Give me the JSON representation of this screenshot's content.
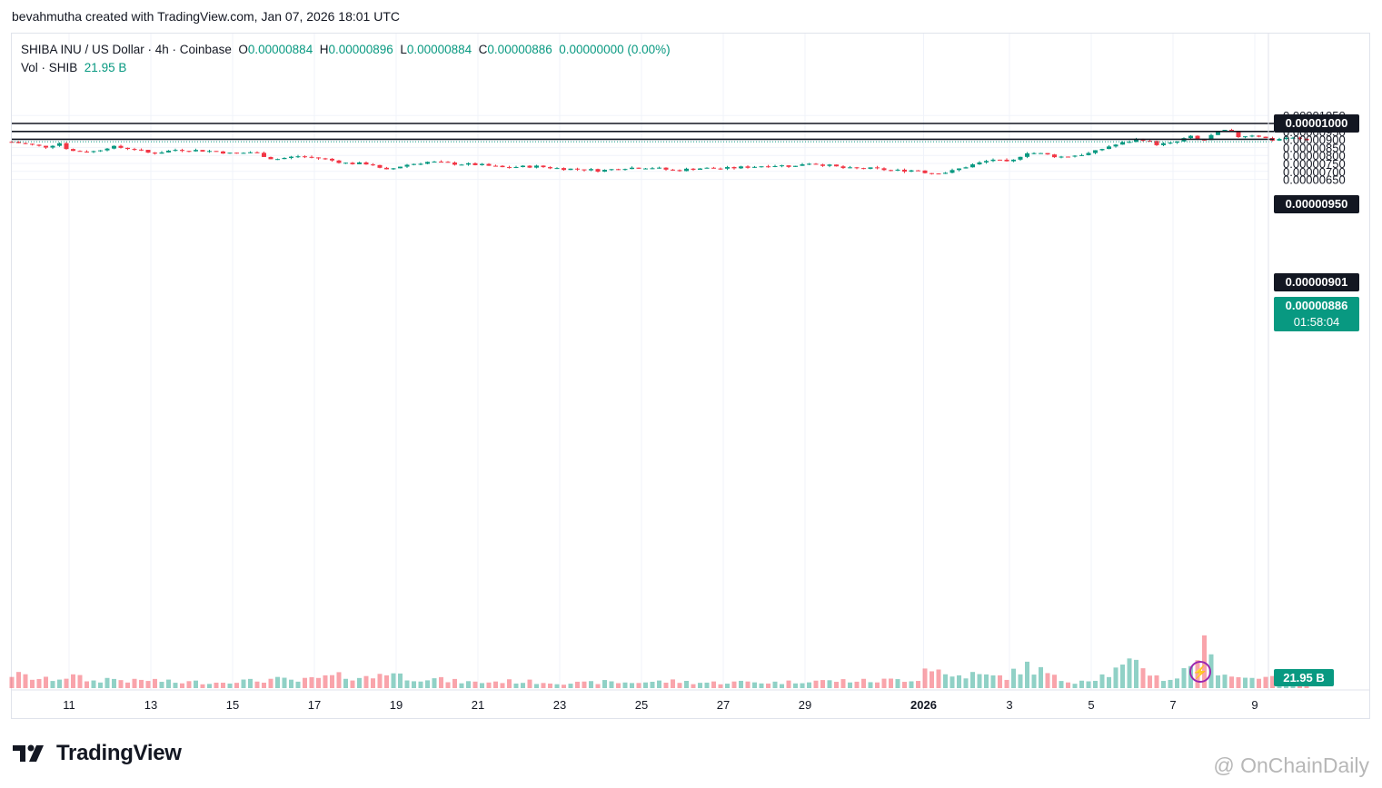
{
  "attribution": "bevahmutha created with TradingView.com, Jan 07, 2026 18:01 UTC",
  "legend": {
    "symbol": "SHIBA INU / US Dollar · 4h · Coinbase",
    "open_label": "O",
    "open": "0.00000884",
    "high_label": "H",
    "high": "0.00000896",
    "low_label": "L",
    "low": "0.00000884",
    "close_label": "C",
    "close": "0.00000886",
    "change": "0.00000000 (0.00%)",
    "vol_label": "Vol · SHIB",
    "vol_value": "21.95 B"
  },
  "price_scale": {
    "current_price": "0.00000886",
    "countdown": "01:58:04",
    "volume_badge": "21.95 B"
  },
  "brand": "TradingView",
  "watermark": "@ OnChainDaily",
  "colors": {
    "up": "#089981",
    "down": "#f23645",
    "level_line": "#131722"
  },
  "chart_data": {
    "type": "candlestick",
    "symbol": "SHIB/USD",
    "interval": "4h",
    "y_ticks": [
      1.05e-05,
      1e-05,
      9.5e-06,
      9e-06,
      8.5e-06,
      8e-06,
      7.5e-06,
      7e-06,
      6.5e-06
    ],
    "y_tick_labels": [
      "0.00001050",
      "0.00001000",
      "0.00000950",
      "0.00000900",
      "0.00000850",
      "0.00000800",
      "0.00000750",
      "0.00000700",
      "0.00000650"
    ],
    "x_tick_labels": [
      "11",
      "13",
      "15",
      "17",
      "19",
      "21",
      "23",
      "25",
      "27",
      "29",
      "2026",
      "3",
      "5",
      "7",
      "9"
    ],
    "horizontal_levels": [
      {
        "value": 1e-05,
        "label": "0.00001000"
      },
      {
        "value": 9.5e-06,
        "label": "0.00000950"
      },
      {
        "value": 9.01e-06,
        "label": "0.00000901"
      }
    ],
    "candle_anchors": [
      {
        "day": 9.6,
        "close": 8.85e-06,
        "volume": 2.0
      },
      {
        "day": 10.4,
        "close": 8.52e-06,
        "volume": 1.2
      },
      {
        "day": 10.8,
        "close": 8.8e-06,
        "volume": 1.5
      },
      {
        "day": 11.0,
        "close": 8.28e-06,
        "volume": 1.8
      },
      {
        "day": 11.6,
        "close": 8.25e-06,
        "volume": 1.0
      },
      {
        "day": 12.0,
        "close": 8.55e-06,
        "volume": 1.4
      },
      {
        "day": 12.6,
        "close": 8.4e-06,
        "volume": 1.0
      },
      {
        "day": 13.0,
        "close": 8.12e-06,
        "volume": 1.2
      },
      {
        "day": 13.6,
        "close": 8.35e-06,
        "volume": 0.8
      },
      {
        "day": 14.0,
        "close": 8.33e-06,
        "volume": 0.9
      },
      {
        "day": 14.6,
        "close": 8.25e-06,
        "volume": 0.8
      },
      {
        "day": 15.0,
        "close": 8.1e-06,
        "volume": 1.1
      },
      {
        "day": 15.5,
        "close": 8.22e-06,
        "volume": 1.0
      },
      {
        "day": 16.0,
        "close": 7.75e-06,
        "volume": 1.3
      },
      {
        "day": 16.6,
        "close": 7.95e-06,
        "volume": 1.0
      },
      {
        "day": 17.2,
        "close": 7.8e-06,
        "volume": 1.5
      },
      {
        "day": 17.8,
        "close": 7.5e-06,
        "volume": 1.8
      },
      {
        "day": 18.4,
        "close": 7.48e-06,
        "volume": 1.4
      },
      {
        "day": 18.7,
        "close": 7.02e-06,
        "volume": 2.6
      },
      {
        "day": 19.2,
        "close": 7.4e-06,
        "volume": 1.6
      },
      {
        "day": 19.8,
        "close": 7.6e-06,
        "volume": 1.4
      },
      {
        "day": 20.4,
        "close": 7.48e-06,
        "volume": 1.0
      },
      {
        "day": 21.0,
        "close": 7.42e-06,
        "volume": 0.8
      },
      {
        "day": 21.6,
        "close": 7.25e-06,
        "volume": 1.0
      },
      {
        "day": 22.4,
        "close": 7.32e-06,
        "volume": 0.9
      },
      {
        "day": 23.0,
        "close": 7.18e-06,
        "volume": 0.8
      },
      {
        "day": 23.6,
        "close": 7.12e-06,
        "volume": 0.7
      },
      {
        "day": 24.0,
        "close": 7.05e-06,
        "volume": 0.9
      },
      {
        "day": 24.6,
        "close": 7.22e-06,
        "volume": 0.8
      },
      {
        "day": 25.2,
        "close": 7.25e-06,
        "volume": 0.9
      },
      {
        "day": 25.8,
        "close": 7.05e-06,
        "volume": 1.0
      },
      {
        "day": 26.4,
        "close": 7.2e-06,
        "volume": 0.8
      },
      {
        "day": 27.0,
        "close": 7.18e-06,
        "volume": 0.8
      },
      {
        "day": 27.6,
        "close": 7.28e-06,
        "volume": 0.9
      },
      {
        "day": 28.2,
        "close": 7.38e-06,
        "volume": 0.8
      },
      {
        "day": 28.8,
        "close": 7.32e-06,
        "volume": 0.9
      },
      {
        "day": 29.0,
        "close": 7.55e-06,
        "volume": 1.2
      },
      {
        "day": 29.5,
        "close": 7.4e-06,
        "volume": 1.0
      },
      {
        "day": 30.0,
        "close": 7.18e-06,
        "volume": 1.1
      },
      {
        "day": 30.6,
        "close": 7.18e-06,
        "volume": 1.0
      },
      {
        "day": 31.2,
        "close": 7.05e-06,
        "volume": 1.2
      },
      {
        "day": 31.8,
        "close": 7.08e-06,
        "volume": 1.4
      },
      {
        "day": 32.0,
        "close": 6.88e-06,
        "volume": 3.6
      },
      {
        "day": 32.5,
        "close": 6.95e-06,
        "volume": 1.6
      },
      {
        "day": 33.0,
        "close": 7.35e-06,
        "volume": 2.0
      },
      {
        "day": 33.6,
        "close": 7.75e-06,
        "volume": 1.6
      },
      {
        "day": 34.0,
        "close": 7.52e-06,
        "volume": 1.8
      },
      {
        "day": 34.4,
        "close": 8.2e-06,
        "volume": 3.2
      },
      {
        "day": 34.8,
        "close": 8.1e-06,
        "volume": 2.4
      },
      {
        "day": 35.2,
        "close": 7.9e-06,
        "volume": 1.2
      },
      {
        "day": 35.6,
        "close": 8e-06,
        "volume": 1.0
      },
      {
        "day": 36.0,
        "close": 8.15e-06,
        "volume": 1.4
      },
      {
        "day": 36.4,
        "close": 8.55e-06,
        "volume": 2.0
      },
      {
        "day": 36.8,
        "close": 8.8e-06,
        "volume": 3.0
      },
      {
        "day": 37.2,
        "close": 9.05e-06,
        "volume": 3.6
      },
      {
        "day": 37.6,
        "close": 8.7e-06,
        "volume": 1.6
      },
      {
        "day": 38.0,
        "close": 8.75e-06,
        "volume": 1.2
      },
      {
        "day": 38.4,
        "close": 9.2e-06,
        "volume": 3.0
      },
      {
        "day": 38.7,
        "close": 8.85e-06,
        "volume": 6.5
      },
      {
        "day": 39.0,
        "close": 9.35e-06,
        "volume": 3.2
      },
      {
        "day": 39.3,
        "close": 9.58e-06,
        "volume": 2.2
      },
      {
        "day": 39.6,
        "close": 9.18e-06,
        "volume": 1.6
      },
      {
        "day": 40.0,
        "close": 9.3e-06,
        "volume": 1.4
      },
      {
        "day": 40.4,
        "close": 8.95e-06,
        "volume": 2.4
      },
      {
        "day": 40.8,
        "close": 9.12e-06,
        "volume": 1.2
      },
      {
        "day": 41.2,
        "close": 8.98e-06,
        "volume": 1.0
      },
      {
        "day": 41.4,
        "close": 8.86e-06,
        "volume": 0.8
      }
    ],
    "last_close": 8.86e-06,
    "current_volume": "21.95 B"
  }
}
